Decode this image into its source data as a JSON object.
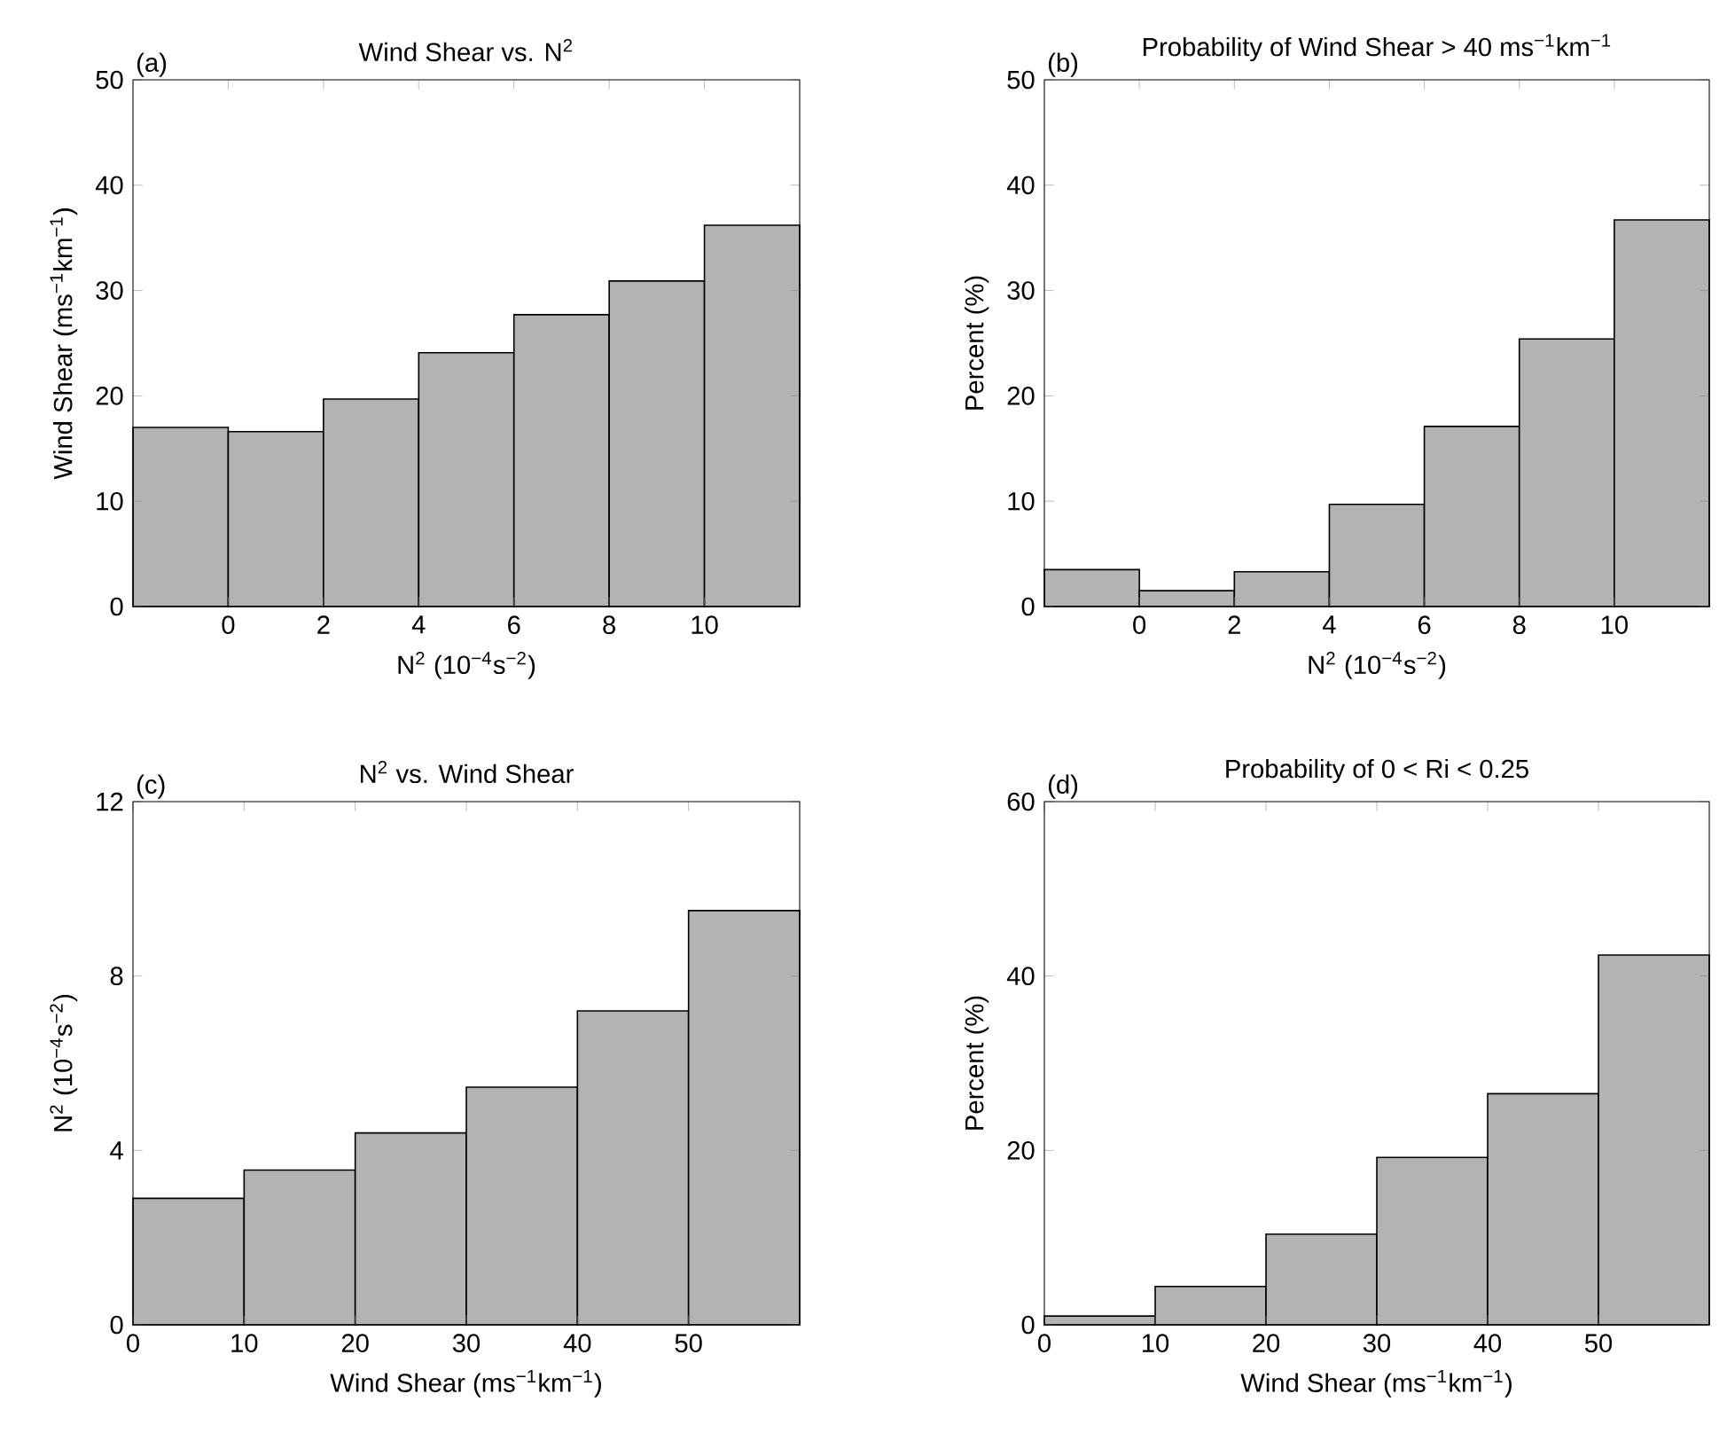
{
  "chart_data": [
    {
      "type": "histogram",
      "title": "Wind Shear vs. N$^{2}$",
      "xlabel": "N$^{2}$ (10$^{−4}$s$^{−2}$)",
      "ylabel": "Wind Shear (ms$^{−1}$km$^{−1}$)",
      "annotations": [
        "(a)"
      ],
      "bins": [
        -2,
        0,
        2,
        4,
        6,
        8,
        10,
        12
      ],
      "values": [
        17,
        16.6,
        19.7,
        24.1,
        27.7,
        30.9,
        36.2
      ],
      "color": "#b3b3b3",
      "xlim": [
        -2,
        12
      ],
      "ylim": [
        0,
        50
      ],
      "xticks": [
        0,
        2,
        4,
        6,
        8,
        10
      ],
      "yticks": [
        0,
        10,
        20,
        30,
        40,
        50
      ]
    },
    {
      "type": "histogram",
      "title": "Probability of Wind Shear > 40 ms$^{−1}$km$^{−1}$",
      "xlabel": "N$^{2}$ (10$^{−4}$s$^{−2}$)",
      "ylabel": "Percent (%)",
      "annotations": [
        "(b)"
      ],
      "bins": [
        -2,
        0,
        2,
        4,
        6,
        8,
        10,
        12
      ],
      "values": [
        3.5,
        1.5,
        3.3,
        9.7,
        17.1,
        25.4,
        36.7
      ],
      "color": "#b3b3b3",
      "xlim": [
        -2,
        12
      ],
      "ylim": [
        0,
        50
      ],
      "xticks": [
        0,
        2,
        4,
        6,
        8,
        10
      ],
      "yticks": [
        0,
        10,
        20,
        30,
        40,
        50
      ]
    },
    {
      "type": "histogram",
      "title": "N$^{2}$ vs. Wind Shear",
      "xlabel": "Wind Shear (ms$^{−1}$km$^{−1}$)",
      "ylabel": "N$^{2}$ (10$^{−4}$s$^{−2}$)",
      "annotations": [
        "(c)"
      ],
      "bins": [
        0,
        10,
        20,
        30,
        40,
        50,
        60
      ],
      "values": [
        2.9,
        3.55,
        4.4,
        5.45,
        7.2,
        9.5
      ],
      "color": "#b3b3b3",
      "xlim": [
        0,
        60
      ],
      "ylim": [
        0,
        12
      ],
      "xticks": [
        0,
        10,
        20,
        30,
        40,
        50
      ],
      "yticks": [
        0,
        4,
        8,
        12
      ]
    },
    {
      "type": "histogram",
      "title": "Probability of 0 < Ri < 0.25",
      "xlabel": "Wind Shear (ms$^{−1}$km$^{−1}$)",
      "ylabel": "Percent (%)",
      "annotations": [
        "(d)"
      ],
      "bins": [
        0,
        10,
        20,
        30,
        40,
        50,
        60
      ],
      "values": [
        1,
        4.4,
        10.4,
        19.2,
        26.5,
        42.4
      ],
      "color": "#b3b3b3",
      "xlim": [
        0,
        60
      ],
      "ylim": [
        0,
        60
      ],
      "xticks": [
        0,
        10,
        20,
        30,
        40,
        50
      ],
      "yticks": [
        0,
        20,
        40,
        60
      ]
    }
  ]
}
